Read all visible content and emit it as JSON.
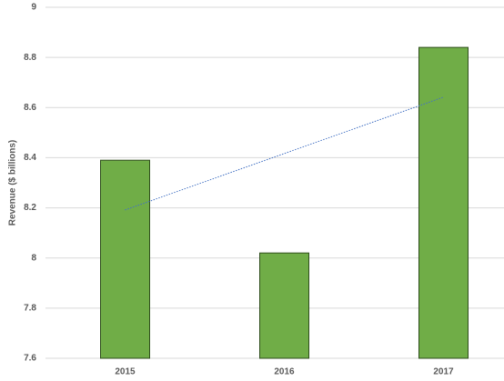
{
  "chart_data": {
    "type": "bar",
    "y_label": "Revenue ($ billions)",
    "categories": [
      "2015",
      "2016",
      "2017"
    ],
    "values": [
      8.39,
      8.02,
      8.84
    ],
    "color": "#70ad47",
    "ylim": [
      7.6,
      9
    ],
    "yticks": [
      7.6,
      7.8,
      8,
      8.2,
      8.4,
      8.6,
      8.8,
      9
    ],
    "grid": true,
    "trendline": "linear",
    "trendline_color": "#4472c4"
  }
}
